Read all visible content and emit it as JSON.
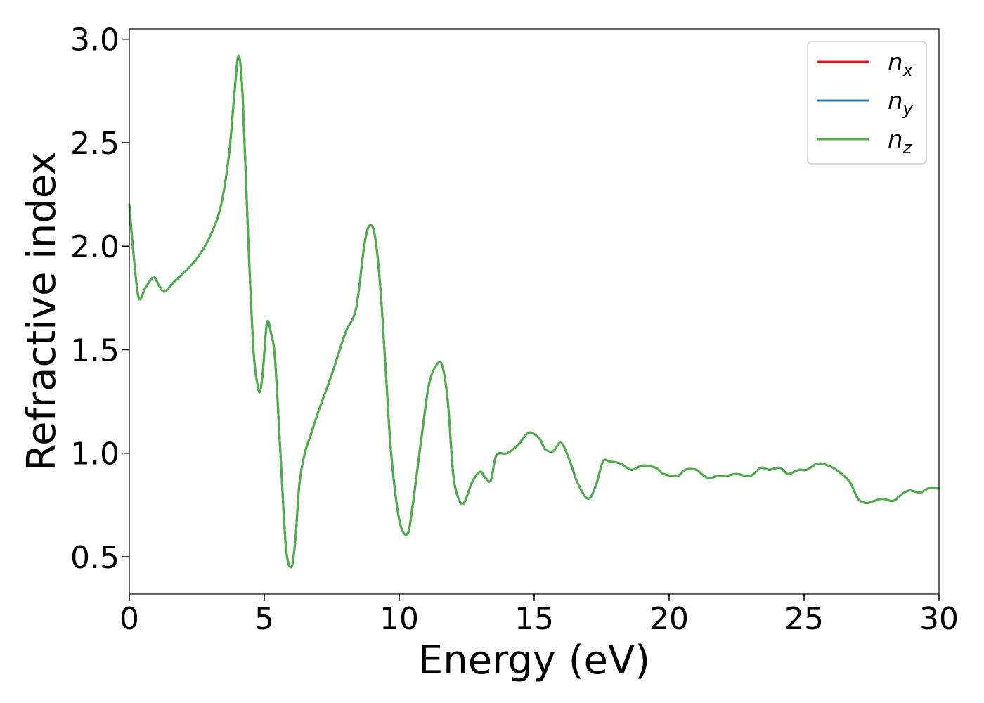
{
  "chart_data": {
    "type": "line",
    "xlabel": "Energy (eV)",
    "ylabel": "Refractive index",
    "xlim": [
      0,
      30
    ],
    "ylim": [
      0.32,
      3.05
    ],
    "xticks": [
      0,
      5,
      10,
      15,
      20,
      25,
      30
    ],
    "yticks": [
      0.5,
      1.0,
      1.5,
      2.0,
      2.5,
      3.0
    ],
    "xtick_labels": [
      "0",
      "5",
      "10",
      "15",
      "20",
      "25",
      "30"
    ],
    "ytick_labels": [
      "0.5",
      "1.0",
      "1.5",
      "2.0",
      "2.5",
      "3.0"
    ],
    "grid": false,
    "legend_position": "top-right",
    "x": [
      0,
      0.15,
      0.35,
      0.6,
      0.9,
      1.1,
      1.3,
      1.6,
      2.0,
      2.5,
      3.0,
      3.4,
      3.7,
      3.9,
      4.05,
      4.2,
      4.4,
      4.6,
      4.75,
      4.85,
      4.95,
      5.1,
      5.25,
      5.4,
      5.6,
      5.8,
      6.0,
      6.15,
      6.3,
      6.5,
      6.7,
      7.0,
      7.5,
      8.0,
      8.4,
      8.7,
      8.9,
      9.1,
      9.3,
      9.5,
      9.7,
      10.0,
      10.3,
      10.5,
      10.8,
      11.1,
      11.4,
      11.6,
      11.8,
      12.0,
      12.2,
      12.4,
      12.7,
      13.0,
      13.2,
      13.4,
      13.6,
      14.0,
      14.4,
      14.8,
      15.2,
      15.4,
      15.7,
      16.0,
      16.3,
      16.6,
      17.0,
      17.3,
      17.55,
      17.8,
      18.2,
      18.6,
      19.0,
      19.5,
      19.8,
      20.3,
      20.6,
      21.0,
      21.3,
      21.5,
      21.8,
      22.1,
      22.5,
      23.0,
      23.4,
      23.7,
      24.1,
      24.4,
      24.8,
      25.1,
      25.5,
      25.9,
      26.3,
      26.7,
      27.0,
      27.3,
      27.6,
      27.9,
      28.3,
      28.6,
      28.9,
      29.3,
      29.6,
      30.0
    ],
    "series": [
      {
        "name": "x",
        "color": "#e41a1c",
        "values": [
          2.2,
          1.97,
          1.75,
          1.8,
          1.85,
          1.81,
          1.78,
          1.82,
          1.87,
          1.94,
          2.05,
          2.2,
          2.45,
          2.75,
          2.92,
          2.72,
          2.05,
          1.5,
          1.33,
          1.3,
          1.4,
          1.63,
          1.58,
          1.45,
          1.0,
          0.55,
          0.45,
          0.58,
          0.85,
          1.0,
          1.08,
          1.2,
          1.38,
          1.58,
          1.7,
          2.0,
          2.1,
          2.05,
          1.8,
          1.4,
          1.0,
          0.68,
          0.61,
          0.75,
          1.05,
          1.33,
          1.43,
          1.42,
          1.25,
          0.9,
          0.78,
          0.76,
          0.86,
          0.91,
          0.88,
          0.87,
          0.99,
          1.0,
          1.04,
          1.1,
          1.07,
          1.02,
          1.01,
          1.05,
          0.97,
          0.86,
          0.78,
          0.85,
          0.96,
          0.96,
          0.95,
          0.92,
          0.94,
          0.93,
          0.9,
          0.89,
          0.92,
          0.92,
          0.89,
          0.88,
          0.89,
          0.89,
          0.9,
          0.89,
          0.93,
          0.92,
          0.93,
          0.9,
          0.92,
          0.92,
          0.95,
          0.94,
          0.91,
          0.86,
          0.78,
          0.76,
          0.77,
          0.78,
          0.77,
          0.8,
          0.82,
          0.81,
          0.83,
          0.83
        ]
      },
      {
        "name": "y",
        "color": "#377eb8",
        "values": [
          2.2,
          1.97,
          1.75,
          1.8,
          1.85,
          1.81,
          1.78,
          1.82,
          1.87,
          1.94,
          2.05,
          2.2,
          2.45,
          2.75,
          2.92,
          2.72,
          2.05,
          1.5,
          1.33,
          1.3,
          1.4,
          1.63,
          1.58,
          1.45,
          1.0,
          0.55,
          0.45,
          0.58,
          0.85,
          1.0,
          1.08,
          1.2,
          1.38,
          1.58,
          1.7,
          2.0,
          2.1,
          2.05,
          1.8,
          1.4,
          1.0,
          0.68,
          0.61,
          0.75,
          1.05,
          1.33,
          1.43,
          1.42,
          1.25,
          0.9,
          0.78,
          0.76,
          0.86,
          0.91,
          0.88,
          0.87,
          0.99,
          1.0,
          1.04,
          1.1,
          1.07,
          1.02,
          1.01,
          1.05,
          0.97,
          0.86,
          0.78,
          0.85,
          0.96,
          0.96,
          0.95,
          0.92,
          0.94,
          0.93,
          0.9,
          0.89,
          0.92,
          0.92,
          0.89,
          0.88,
          0.89,
          0.89,
          0.9,
          0.89,
          0.93,
          0.92,
          0.93,
          0.9,
          0.92,
          0.92,
          0.95,
          0.94,
          0.91,
          0.86,
          0.78,
          0.76,
          0.77,
          0.78,
          0.77,
          0.8,
          0.82,
          0.81,
          0.83,
          0.83
        ]
      },
      {
        "name": "z",
        "color": "#4daf4a",
        "values": [
          2.2,
          1.97,
          1.75,
          1.8,
          1.85,
          1.81,
          1.78,
          1.82,
          1.87,
          1.94,
          2.05,
          2.2,
          2.45,
          2.75,
          2.92,
          2.72,
          2.05,
          1.5,
          1.33,
          1.3,
          1.4,
          1.63,
          1.58,
          1.45,
          1.0,
          0.55,
          0.45,
          0.58,
          0.85,
          1.0,
          1.08,
          1.2,
          1.38,
          1.58,
          1.7,
          2.0,
          2.1,
          2.05,
          1.8,
          1.4,
          1.0,
          0.68,
          0.61,
          0.75,
          1.05,
          1.33,
          1.43,
          1.42,
          1.25,
          0.9,
          0.78,
          0.76,
          0.86,
          0.91,
          0.88,
          0.87,
          0.99,
          1.0,
          1.04,
          1.1,
          1.07,
          1.02,
          1.01,
          1.05,
          0.97,
          0.86,
          0.78,
          0.85,
          0.96,
          0.96,
          0.95,
          0.92,
          0.94,
          0.93,
          0.9,
          0.89,
          0.92,
          0.92,
          0.89,
          0.88,
          0.89,
          0.89,
          0.9,
          0.89,
          0.93,
          0.92,
          0.93,
          0.9,
          0.92,
          0.92,
          0.95,
          0.94,
          0.91,
          0.86,
          0.78,
          0.76,
          0.77,
          0.78,
          0.77,
          0.8,
          0.82,
          0.81,
          0.83,
          0.83
        ]
      }
    ],
    "legend": [
      {
        "base": "n",
        "sub": "x",
        "color": "#e41a1c"
      },
      {
        "base": "n",
        "sub": "y",
        "color": "#377eb8"
      },
      {
        "base": "n",
        "sub": "z",
        "color": "#4daf4a"
      }
    ]
  }
}
